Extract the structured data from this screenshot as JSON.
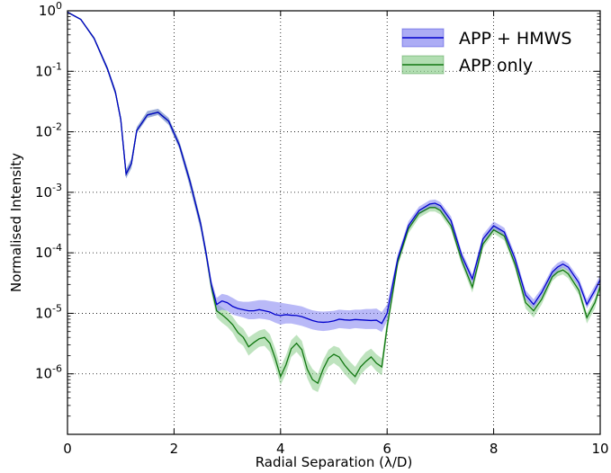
{
  "chart_data": {
    "type": "line",
    "title": "",
    "xlabel": "Radial Separation (λ/D)",
    "ylabel": "Normalised Intensity",
    "xlim": [
      0,
      10
    ],
    "ylim": [
      1e-07,
      1
    ],
    "yscale": "log",
    "grid": true,
    "legend_position": "top-right",
    "x_ticks": [
      "0",
      "2",
      "4",
      "6",
      "8",
      "10"
    ],
    "y_ticks": [
      {
        "base": "10",
        "exp": "-6"
      },
      {
        "base": "10",
        "exp": "-5"
      },
      {
        "base": "10",
        "exp": "-4"
      },
      {
        "base": "10",
        "exp": "-3"
      },
      {
        "base": "10",
        "exp": "-2"
      },
      {
        "base": "10",
        "exp": "-1"
      },
      {
        "base": "10",
        "exp": "0"
      }
    ],
    "x": [
      0,
      0.25,
      0.5,
      0.75,
      0.9,
      1.0,
      1.1,
      1.2,
      1.3,
      1.5,
      1.7,
      1.9,
      2.1,
      2.3,
      2.5,
      2.6,
      2.7,
      2.8,
      2.9,
      3.0,
      3.1,
      3.2,
      3.3,
      3.4,
      3.5,
      3.6,
      3.7,
      3.8,
      3.9,
      4.0,
      4.1,
      4.2,
      4.3,
      4.4,
      4.5,
      4.6,
      4.7,
      4.8,
      4.9,
      5.0,
      5.1,
      5.2,
      5.3,
      5.4,
      5.5,
      5.6,
      5.7,
      5.8,
      5.9,
      6.0,
      6.2,
      6.4,
      6.6,
      6.8,
      6.9,
      7.0,
      7.2,
      7.4,
      7.6,
      7.8,
      8.0,
      8.2,
      8.4,
      8.6,
      8.75,
      8.9,
      9.1,
      9.2,
      9.3,
      9.4,
      9.6,
      9.75,
      9.9,
      10.0
    ],
    "series": [
      {
        "name": "APP + HMWS",
        "color": "#0000cc",
        "fill": "#8080f0",
        "values": [
          0.95,
          0.72,
          0.35,
          0.11,
          0.045,
          0.016,
          0.002,
          0.003,
          0.0105,
          0.019,
          0.021,
          0.015,
          0.006,
          0.0015,
          0.0003,
          0.0001,
          3e-05,
          1.4e-05,
          1.6e-05,
          1.5e-05,
          1.3e-05,
          1.2e-05,
          1.15e-05,
          1.1e-05,
          1.1e-05,
          1.15e-05,
          1.1e-05,
          1.05e-05,
          9.5e-06,
          9.2e-06,
          9.5e-06,
          9.3e-06,
          9.2e-06,
          8.8e-06,
          8.2e-06,
          7.6e-06,
          7.2e-06,
          7.1e-06,
          7.2e-06,
          7.5e-06,
          8e-06,
          7.8e-06,
          7.7e-06,
          7.9e-06,
          7.8e-06,
          7.7e-06,
          7.6e-06,
          7.7e-06,
          6.8e-06,
          1e-05,
          8e-05,
          0.00028,
          0.0005,
          0.00064,
          0.00066,
          0.0006,
          0.00034,
          9e-05,
          3.7e-05,
          0.00017,
          0.00028,
          0.00022,
          8e-05,
          2e-05,
          1.4e-05,
          2.2e-05,
          4.8e-05,
          5.8e-05,
          6.5e-05,
          5.8e-05,
          3.2e-05,
          1.4e-05,
          2.4e-05,
          3.6e-05
        ],
        "lower": [
          0.93,
          0.7,
          0.33,
          0.1,
          0.04,
          0.014,
          0.0017,
          0.0025,
          0.0095,
          0.017,
          0.019,
          0.013,
          0.0052,
          0.0012,
          0.00024,
          8e-05,
          2.4e-05,
          1.05e-05,
          1.15e-05,
          1.1e-05,
          9.5e-06,
          9e-06,
          8.5e-06,
          8e-06,
          8e-06,
          8.2e-06,
          8e-06,
          7.7e-06,
          7e-06,
          6.5e-06,
          6.8e-06,
          6.8e-06,
          6.5e-06,
          6.2e-06,
          5.8e-06,
          5.4e-06,
          5.2e-06,
          5.1e-06,
          5.2e-06,
          5.4e-06,
          5.7e-06,
          5.6e-06,
          5.5e-06,
          5.7e-06,
          5.6e-06,
          5.5e-06,
          5.5e-06,
          5.5e-06,
          4.9e-06,
          7.5e-06,
          7e-05,
          0.00024,
          0.00043,
          0.00055,
          0.00057,
          0.00052,
          0.00029,
          7.6e-05,
          3.1e-05,
          0.00015,
          0.00024,
          0.00019,
          6.8e-05,
          1.7e-05,
          1.2e-05,
          1.9e-05,
          4.1e-05,
          5e-05,
          5.7e-05,
          5e-05,
          2.7e-05,
          1.2e-05,
          2e-05,
          3e-05
        ],
        "upper": [
          0.97,
          0.74,
          0.37,
          0.12,
          0.05,
          0.018,
          0.0024,
          0.0036,
          0.012,
          0.022,
          0.024,
          0.017,
          0.007,
          0.0018,
          0.00036,
          0.00012,
          3.6e-05,
          1.8e-05,
          2.1e-05,
          2e-05,
          1.8e-05,
          1.6e-05,
          1.55e-05,
          1.55e-05,
          1.6e-05,
          1.65e-05,
          1.65e-05,
          1.6e-05,
          1.55e-05,
          1.5e-05,
          1.45e-05,
          1.4e-05,
          1.35e-05,
          1.3e-05,
          1.2e-05,
          1.12e-05,
          1.08e-05,
          1.07e-05,
          1.08e-05,
          1.1e-05,
          1.15e-05,
          1.13e-05,
          1.12e-05,
          1.15e-05,
          1.15e-05,
          1.18e-05,
          1.18e-05,
          1.2e-05,
          1.05e-05,
          1.4e-05,
          9.5e-05,
          0.00033,
          0.00058,
          0.00074,
          0.00076,
          0.00069,
          0.0004,
          0.000106,
          4.4e-05,
          0.0002,
          0.00033,
          0.00026,
          9.5e-05,
          2.4e-05,
          1.7e-05,
          2.6e-05,
          5.6e-05,
          6.8e-05,
          7.5e-05,
          6.7e-05,
          3.8e-05,
          1.7e-05,
          2.9e-05,
          4.3e-05
        ]
      },
      {
        "name": "APP only",
        "color": "#117711",
        "fill": "#88cc88",
        "values": [
          0.95,
          0.72,
          0.35,
          0.11,
          0.045,
          0.016,
          0.002,
          0.003,
          0.0105,
          0.019,
          0.021,
          0.015,
          0.006,
          0.0015,
          0.0003,
          0.0001,
          2.8e-05,
          1.1e-05,
          9.5e-06,
          8e-06,
          6.5e-06,
          4.8e-06,
          4e-06,
          2.8e-06,
          3.3e-06,
          3.8e-06,
          4e-06,
          3.2e-06,
          1.8e-06,
          9e-07,
          1.4e-06,
          2.6e-06,
          3.2e-06,
          2.5e-06,
          1.2e-06,
          8e-07,
          7e-07,
          1.2e-06,
          1.8e-06,
          2.1e-06,
          1.9e-06,
          1.4e-06,
          1.1e-06,
          9e-07,
          1.3e-06,
          1.6e-06,
          1.9e-06,
          1.5e-06,
          1.3e-06,
          6e-06,
          7e-05,
          0.00025,
          0.00045,
          0.00056,
          0.00056,
          0.0005,
          0.00028,
          7.5e-05,
          2.7e-05,
          0.00014,
          0.00024,
          0.00019,
          6.5e-05,
          1.5e-05,
          1.1e-05,
          1.7e-05,
          4e-05,
          4.8e-05,
          5.2e-05,
          4.5e-05,
          2.4e-05,
          8.5e-06,
          1.5e-05,
          2.8e-05
        ],
        "lower": [
          0.93,
          0.7,
          0.33,
          0.1,
          0.04,
          0.014,
          0.0017,
          0.0025,
          0.0095,
          0.017,
          0.019,
          0.013,
          0.0052,
          0.0012,
          0.00024,
          8e-05,
          2.2e-05,
          8.5e-06,
          7e-06,
          6e-06,
          4.8e-06,
          3.4e-06,
          2.9e-06,
          2e-06,
          2.4e-06,
          2.8e-06,
          2.9e-06,
          2.3e-06,
          1.3e-06,
          6.5e-07,
          1e-06,
          1.9e-06,
          2.3e-06,
          1.8e-06,
          8.5e-07,
          5.5e-07,
          5e-07,
          8.5e-07,
          1.3e-06,
          1.5e-06,
          1.3e-06,
          1e-06,
          8e-07,
          6.5e-07,
          9.5e-07,
          1.2e-06,
          1.4e-06,
          1.1e-06,
          9.5e-07,
          4.5e-06,
          6e-05,
          0.00021,
          0.00038,
          0.00048,
          0.00048,
          0.00043,
          0.00024,
          6.3e-05,
          2.2e-05,
          0.00012,
          0.00021,
          0.00016,
          5.5e-05,
          1.2e-05,
          8.5e-06,
          1.4e-05,
          3.4e-05,
          4.1e-05,
          4.4e-05,
          3.8e-05,
          2e-05,
          6.8e-06,
          1.2e-05,
          2.4e-05
        ],
        "upper": [
          0.97,
          0.74,
          0.37,
          0.12,
          0.05,
          0.018,
          0.0024,
          0.0036,
          0.012,
          0.022,
          0.024,
          0.017,
          0.007,
          0.0018,
          0.00036,
          0.00012,
          3.4e-05,
          1.45e-05,
          1.25e-05,
          1.08e-05,
          8.8e-06,
          6.6e-06,
          5.6e-06,
          4e-06,
          4.6e-06,
          5.2e-06,
          5.5e-06,
          4.5e-06,
          2.6e-06,
          1.3e-06,
          2e-06,
          3.6e-06,
          4.4e-06,
          3.5e-06,
          1.7e-06,
          1.2e-06,
          1e-06,
          1.7e-06,
          2.5e-06,
          2.9e-06,
          2.7e-06,
          2e-06,
          1.6e-06,
          1.3e-06,
          1.8e-06,
          2.3e-06,
          2.6e-06,
          2.1e-06,
          1.8e-06,
          8e-06,
          8e-05,
          0.00029,
          0.00052,
          0.00064,
          0.00064,
          0.00058,
          0.00032,
          8.8e-05,
          3.2e-05,
          0.00016,
          0.00028,
          0.00022,
          7.5e-05,
          1.8e-05,
          1.3e-05,
          2e-05,
          4.6e-05,
          5.6e-05,
          6e-05,
          5.2e-05,
          2.8e-05,
          1e-05,
          1.8e-05,
          3.2e-05
        ]
      }
    ]
  }
}
